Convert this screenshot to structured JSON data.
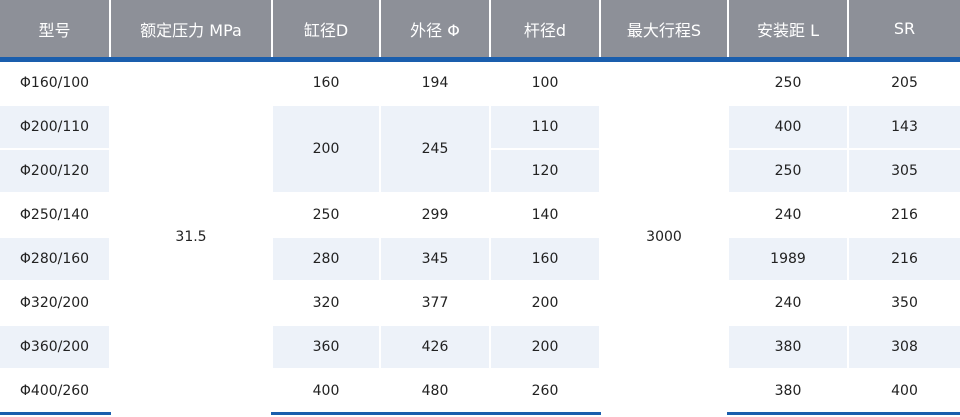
{
  "headers": [
    "型号",
    "额定压力 MPa",
    "缸径D",
    "外径 Φ",
    "杆径d",
    "最大行程S",
    "安装距 L",
    "SR"
  ],
  "rows": [
    [
      "Φ160/100",
      "31.5",
      "160",
      "194",
      "100",
      "3000",
      "250",
      "205"
    ],
    [
      "Φ200/110",
      null,
      "200",
      "245",
      "110",
      null,
      "400",
      "143"
    ],
    [
      "Φ200/120",
      null,
      null,
      null,
      "120",
      null,
      "250",
      "305"
    ],
    [
      "Φ250/140",
      null,
      "250",
      "299",
      "140",
      null,
      "240",
      "216"
    ],
    [
      "Φ280/160",
      null,
      "280",
      "345",
      "160",
      null,
      "1989",
      "216"
    ],
    [
      "Φ320/200",
      null,
      "320",
      "377",
      "200",
      null,
      "240",
      "350"
    ],
    [
      "Φ360/200",
      null,
      "360",
      "426",
      "200",
      null,
      "380",
      "308"
    ],
    [
      "Φ400/260",
      null,
      "400",
      "480",
      "260",
      null,
      "380",
      "400"
    ]
  ],
  "colors": {
    "header_bg": "#8d9098",
    "accent": "#1a5ead",
    "stripe": "#edf2f9"
  }
}
